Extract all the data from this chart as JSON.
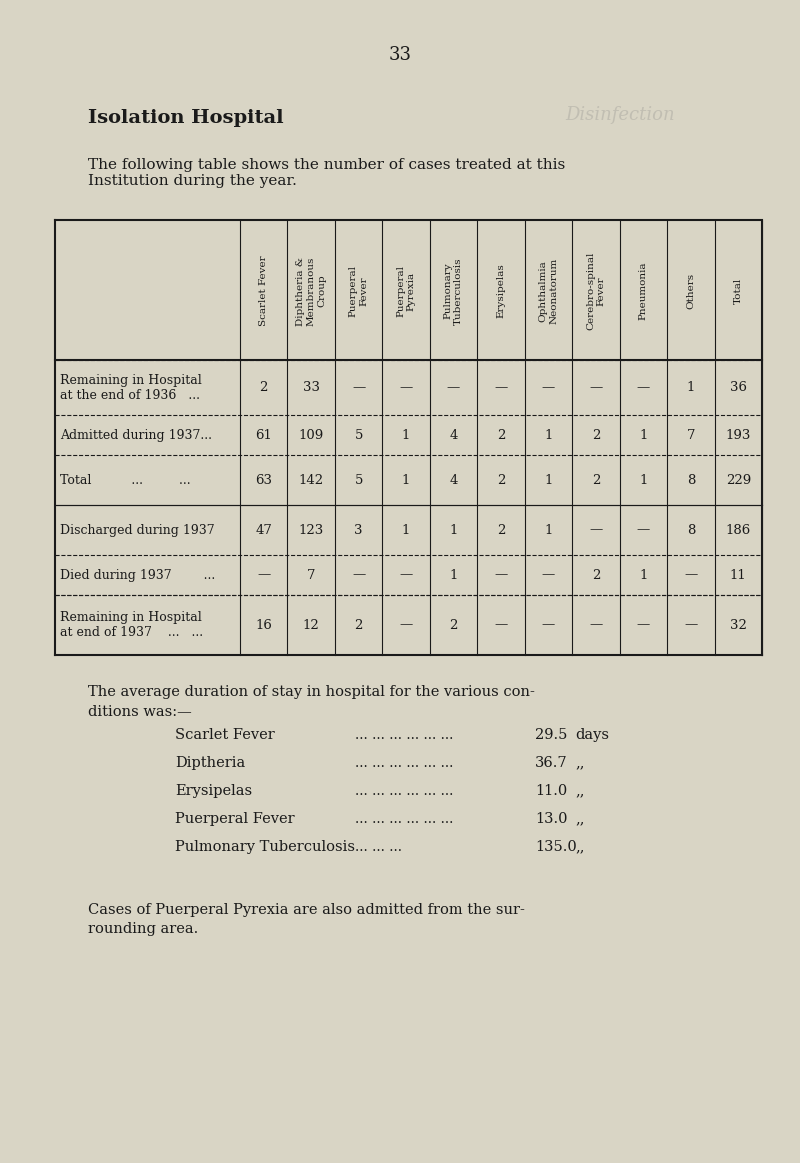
{
  "page_number": "33",
  "title": "Isolation Hospital",
  "subtitle": "The following table shows the number of cases treated at this\nInstitution during the year.",
  "bg_color": "#d9d5c5",
  "text_color": "#1a1a1a",
  "col_headers": [
    "Scarlet Fever",
    "Diphtheria &\nMembranous\nCroup",
    "Puerperal\nFever",
    "Puerperal\nPyrexia",
    "Pulmonary\nTuberculosis",
    "Erysipelas",
    "Ophthalmia\nNeonatorum",
    "Cerebro-spinal\nFever",
    "Pneumonia",
    "Others",
    "Total"
  ],
  "row_labels": [
    "Remaining in Hospital\nat the end of 1936   ...",
    "Admitted during 1937...",
    "Total          ...         ...",
    "Discharged during 1937",
    "Died during 1937        ...",
    "Remaining in Hospital\nat end of 1937    ...   ..."
  ],
  "table_data": [
    [
      "2",
      "33",
      "—",
      "—",
      "—",
      "—",
      "—",
      "—",
      "—",
      "1",
      "36"
    ],
    [
      "61",
      "109",
      "5",
      "1",
      "4",
      "2",
      "1",
      "2",
      "1",
      "7",
      "193"
    ],
    [
      "63",
      "142",
      "5",
      "1",
      "4",
      "2",
      "1",
      "2",
      "1",
      "8",
      "229"
    ],
    [
      "47",
      "123",
      "3",
      "1",
      "1",
      "2",
      "1",
      "—",
      "—",
      "8",
      "186"
    ],
    [
      "—",
      "7",
      "—",
      "—",
      "1",
      "—",
      "—",
      "2",
      "1",
      "—",
      "11"
    ],
    [
      "16",
      "12",
      "2",
      "—",
      "2",
      "—",
      "—",
      "—",
      "—",
      "—",
      "32"
    ]
  ],
  "avg_duration_title": "The average duration of stay in hospital for the various con-\nditions was:—",
  "avg_duration": [
    [
      "Scarlet Fever",
      "29.5",
      "days"
    ],
    [
      "Diptheria",
      "36.7",
      ",,"
    ],
    [
      "Erysipelas",
      "11.0",
      ",,"
    ],
    [
      "Puerperal Fever",
      "13.0",
      ",,"
    ],
    [
      "Pulmonary Tuberculosis",
      "135.0",
      ",,"
    ]
  ],
  "footer": "Cases of Puerperal Pyrexia are also admitted from the sur-\nrounding area.",
  "watermark": "Disinfection"
}
